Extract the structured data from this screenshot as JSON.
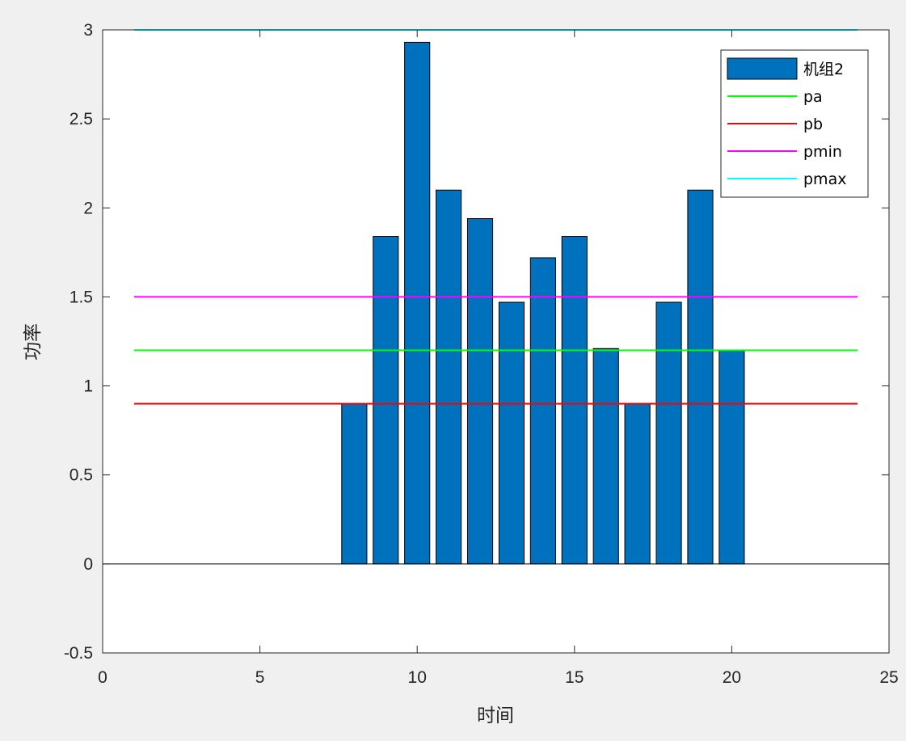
{
  "chart_data": {
    "type": "bar",
    "title": "",
    "xlabel": "时间",
    "ylabel": "功率",
    "xlim": [
      0,
      25
    ],
    "ylim": [
      -0.5,
      3
    ],
    "xticks": [
      0,
      5,
      10,
      15,
      20,
      25
    ],
    "yticks": [
      -0.5,
      0,
      0.5,
      1,
      1.5,
      2,
      2.5,
      3
    ],
    "x_tick_labels": [
      "0",
      "5",
      "10",
      "15",
      "20",
      "25"
    ],
    "y_tick_labels": [
      "-0.5",
      "0",
      "0.5",
      "1",
      "1.5",
      "2",
      "2.5",
      "3"
    ],
    "grid": false,
    "legend_position": "top-right",
    "bar_series": {
      "name": "机组2",
      "color": "#0072BD",
      "x": [
        1,
        2,
        3,
        4,
        5,
        6,
        7,
        8,
        9,
        10,
        11,
        12,
        13,
        14,
        15,
        16,
        17,
        18,
        19,
        20,
        21,
        22,
        23,
        24
      ],
      "values": [
        0,
        0,
        0,
        0,
        0,
        0,
        0,
        0.9,
        1.84,
        2.93,
        2.1,
        1.94,
        1.47,
        1.72,
        1.84,
        1.21,
        0.9,
        1.47,
        2.1,
        1.2,
        0,
        0,
        0,
        0
      ]
    },
    "line_series": [
      {
        "name": "pa",
        "color": "#00FF00",
        "value": 1.2,
        "x_range": [
          1,
          24
        ]
      },
      {
        "name": "pb",
        "color": "#FF0000",
        "value": 0.9,
        "x_range": [
          1,
          24
        ]
      },
      {
        "name": "pmin",
        "color": "#FF00FF",
        "value": 1.5,
        "x_range": [
          1,
          24
        ]
      },
      {
        "name": "pmax",
        "color": "#00FFFF",
        "value": 3.0,
        "x_range": [
          1,
          24
        ]
      }
    ]
  }
}
